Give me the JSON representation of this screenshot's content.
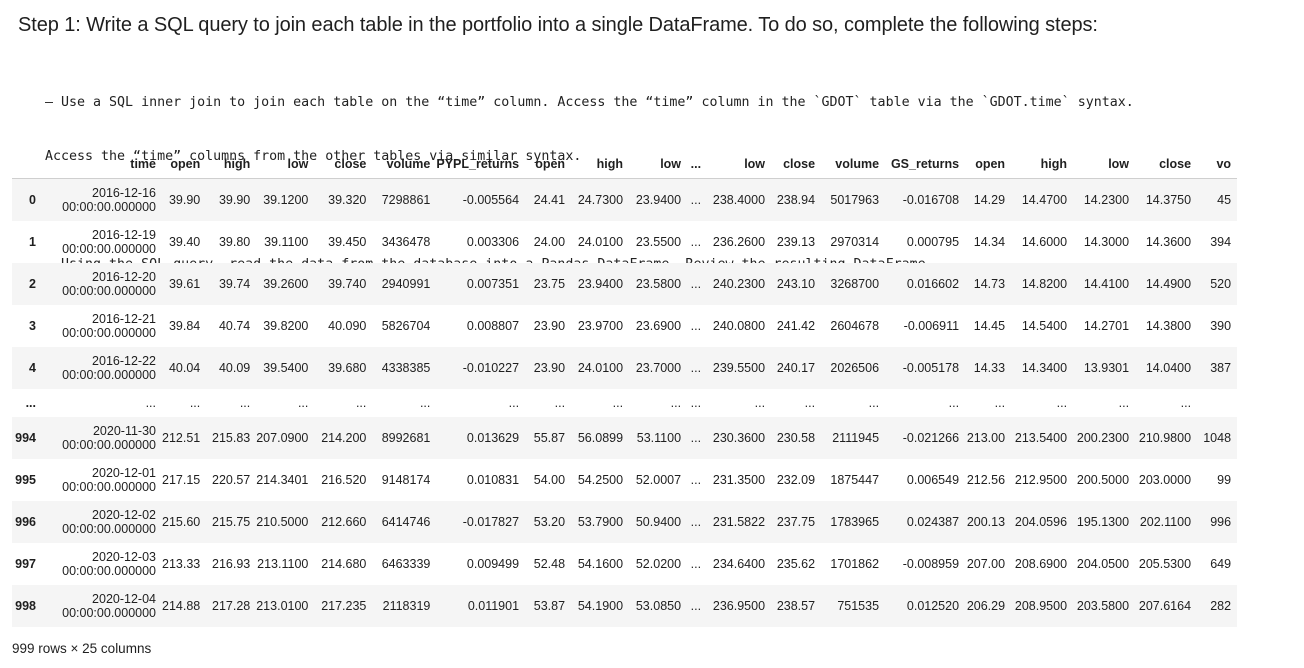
{
  "heading": "Step 1: Write a SQL query to join each table in the portfolio into a single DataFrame. To do so, complete the following steps:",
  "instructions": {
    "line1": "– Use a SQL inner join to join each table on the “time” column. Access the “time” column in the `GDOT` table via the `GDOT.time` syntax.",
    "line2": "Access the “time” columns from the other tables via similar syntax.",
    "line3": "– Using the SQL query, read the data from the database into a Pandas DataFrame. Review the resulting DataFrame."
  },
  "table": {
    "columns": [
      "",
      "time",
      "open",
      "high",
      "low",
      "close",
      "volume",
      "PYPL_returns",
      "open",
      "high",
      "low",
      "...",
      "low",
      "close",
      "volume",
      "GS_returns",
      "open",
      "high",
      "low",
      "close",
      "vo"
    ],
    "rows": [
      {
        "index": "0",
        "date": "2016-12-16",
        "clock": "00:00:00.000000",
        "cells": [
          "39.90",
          "39.90",
          "39.1200",
          "39.320",
          "7298861",
          "-0.005564",
          "24.41",
          "24.7300",
          "23.9400",
          "...",
          "238.4000",
          "238.94",
          "5017963",
          "-0.016708",
          "14.29",
          "14.4700",
          "14.2300",
          "14.3750",
          "45"
        ]
      },
      {
        "index": "1",
        "date": "2016-12-19",
        "clock": "00:00:00.000000",
        "cells": [
          "39.40",
          "39.80",
          "39.1100",
          "39.450",
          "3436478",
          "0.003306",
          "24.00",
          "24.0100",
          "23.5500",
          "...",
          "236.2600",
          "239.13",
          "2970314",
          "0.000795",
          "14.34",
          "14.6000",
          "14.3000",
          "14.3600",
          "394"
        ]
      },
      {
        "index": "2",
        "date": "2016-12-20",
        "clock": "00:00:00.000000",
        "cells": [
          "39.61",
          "39.74",
          "39.2600",
          "39.740",
          "2940991",
          "0.007351",
          "23.75",
          "23.9400",
          "23.5800",
          "...",
          "240.2300",
          "243.10",
          "3268700",
          "0.016602",
          "14.73",
          "14.8200",
          "14.4100",
          "14.4900",
          "520"
        ]
      },
      {
        "index": "3",
        "date": "2016-12-21",
        "clock": "00:00:00.000000",
        "cells": [
          "39.84",
          "40.74",
          "39.8200",
          "40.090",
          "5826704",
          "0.008807",
          "23.90",
          "23.9700",
          "23.6900",
          "...",
          "240.0800",
          "241.42",
          "2604678",
          "-0.006911",
          "14.45",
          "14.5400",
          "14.2701",
          "14.3800",
          "390"
        ]
      },
      {
        "index": "4",
        "date": "2016-12-22",
        "clock": "00:00:00.000000",
        "cells": [
          "40.04",
          "40.09",
          "39.5400",
          "39.680",
          "4338385",
          "-0.010227",
          "23.90",
          "24.0100",
          "23.7000",
          "...",
          "239.5500",
          "240.17",
          "2026506",
          "-0.005178",
          "14.33",
          "14.3400",
          "13.9301",
          "14.0400",
          "387"
        ]
      },
      {
        "index": "...",
        "date": "...",
        "clock": "",
        "cells": [
          "...",
          "...",
          "...",
          "...",
          "...",
          "...",
          "...",
          "...",
          "...",
          "...",
          "...",
          "...",
          "...",
          "...",
          "...",
          "...",
          "...",
          "...",
          ""
        ]
      },
      {
        "index": "994",
        "date": "2020-11-30",
        "clock": "00:00:00.000000",
        "cells": [
          "212.51",
          "215.83",
          "207.0900",
          "214.200",
          "8992681",
          "0.013629",
          "55.87",
          "56.0899",
          "53.1100",
          "...",
          "230.3600",
          "230.58",
          "2111945",
          "-0.021266",
          "213.00",
          "213.5400",
          "200.2300",
          "210.9800",
          "1048"
        ]
      },
      {
        "index": "995",
        "date": "2020-12-01",
        "clock": "00:00:00.000000",
        "cells": [
          "217.15",
          "220.57",
          "214.3401",
          "216.520",
          "9148174",
          "0.010831",
          "54.00",
          "54.2500",
          "52.0007",
          "...",
          "231.3500",
          "232.09",
          "1875447",
          "0.006549",
          "212.56",
          "212.9500",
          "200.5000",
          "203.0000",
          "99"
        ]
      },
      {
        "index": "996",
        "date": "2020-12-02",
        "clock": "00:00:00.000000",
        "cells": [
          "215.60",
          "215.75",
          "210.5000",
          "212.660",
          "6414746",
          "-0.017827",
          "53.20",
          "53.7900",
          "50.9400",
          "...",
          "231.5822",
          "237.75",
          "1783965",
          "0.024387",
          "200.13",
          "204.0596",
          "195.1300",
          "202.1100",
          "996"
        ]
      },
      {
        "index": "997",
        "date": "2020-12-03",
        "clock": "00:00:00.000000",
        "cells": [
          "213.33",
          "216.93",
          "213.1100",
          "214.680",
          "6463339",
          "0.009499",
          "52.48",
          "54.1600",
          "52.0200",
          "...",
          "234.6400",
          "235.62",
          "1701862",
          "-0.008959",
          "207.00",
          "208.6900",
          "204.0500",
          "205.5300",
          "649"
        ]
      },
      {
        "index": "998",
        "date": "2020-12-04",
        "clock": "00:00:00.000000",
        "cells": [
          "214.88",
          "217.28",
          "213.0100",
          "217.235",
          "2118319",
          "0.011901",
          "53.87",
          "54.1900",
          "53.0850",
          "...",
          "236.9500",
          "238.57",
          "751535",
          "0.012520",
          "206.29",
          "208.9500",
          "203.5800",
          "207.6164",
          "282"
        ]
      }
    ]
  },
  "footer": "999 rows × 25 columns"
}
